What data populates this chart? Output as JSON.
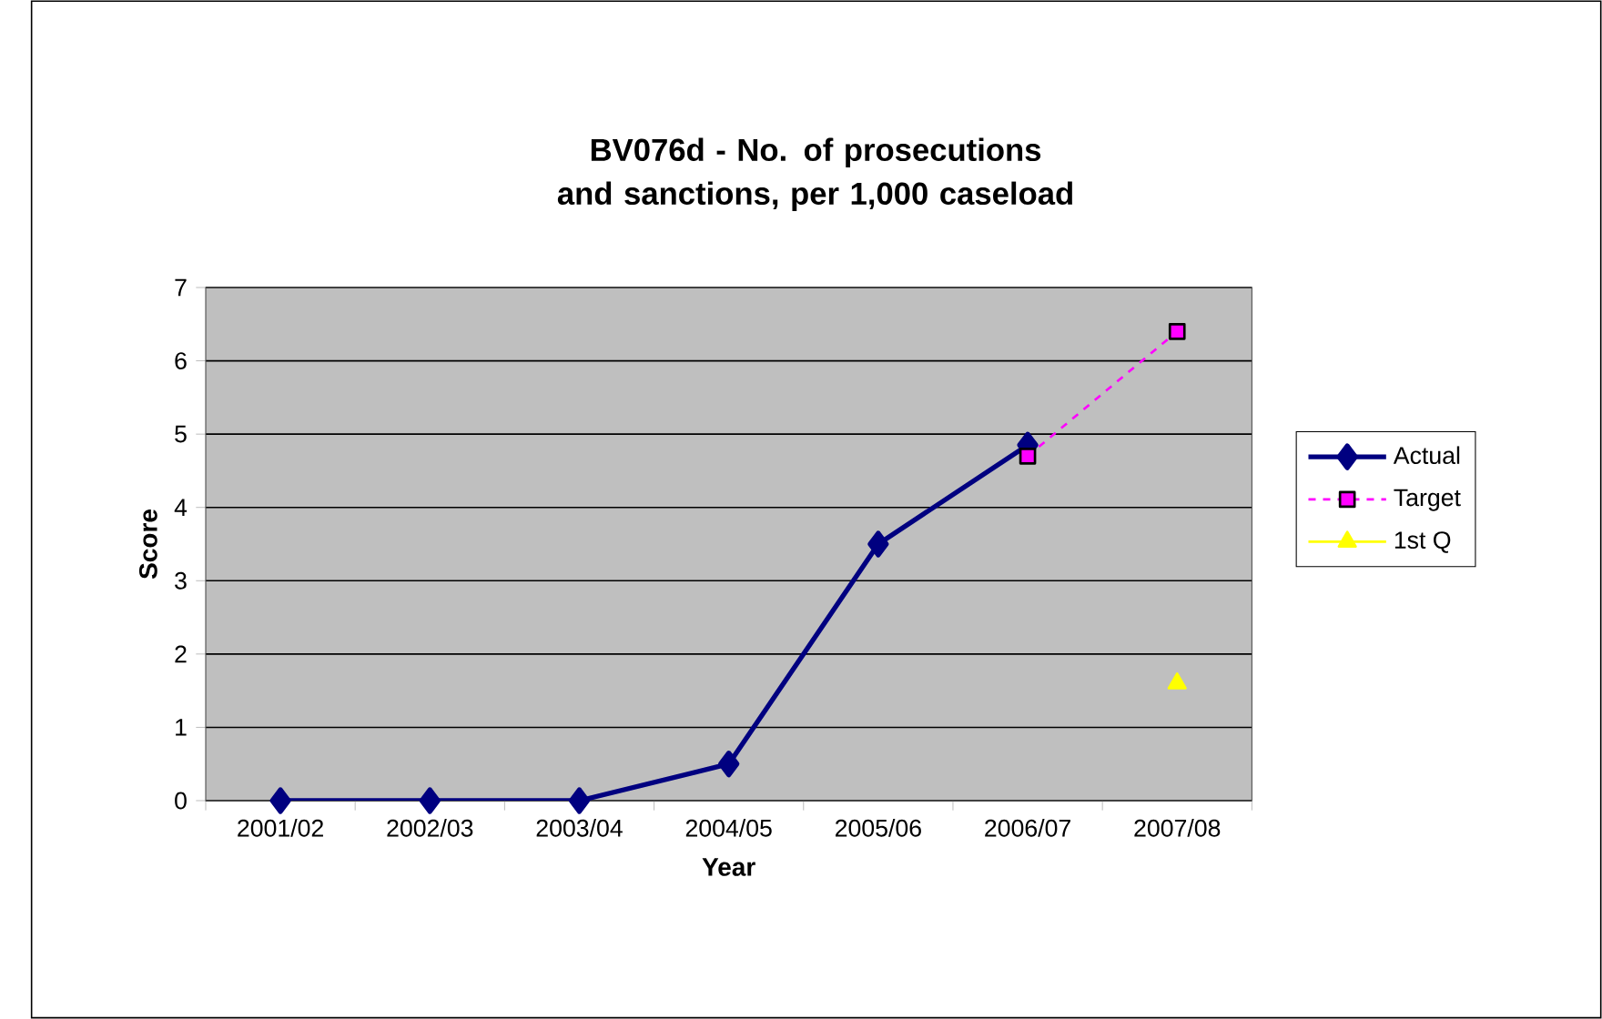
{
  "chart_data": {
    "type": "line",
    "title": "BV076d - No. of prosecutions and sanctions, per 1,000 caseload",
    "xlabel": "Year",
    "ylabel": "Score",
    "categories": [
      "2001/02",
      "2002/03",
      "2003/04",
      "2004/05",
      "2005/06",
      "2006/07",
      "2007/08"
    ],
    "series": [
      {
        "name": "Actual",
        "color": "#000080",
        "marker": "diamond",
        "line_style": "solid",
        "values": [
          0,
          0,
          0,
          0.5,
          3.5,
          4.85,
          null
        ]
      },
      {
        "name": "Target",
        "color": "#ff00ff",
        "marker": "square",
        "line_style": "dashed",
        "values": [
          null,
          null,
          null,
          null,
          null,
          4.7,
          6.4
        ]
      },
      {
        "name": "1st Q",
        "color": "#ffff00",
        "marker": "triangle",
        "line_style": "solid",
        "values": [
          null,
          null,
          null,
          null,
          null,
          null,
          1.6
        ]
      }
    ],
    "ylim": [
      0,
      7
    ],
    "yticks": [
      0,
      1,
      2,
      3,
      4,
      5,
      6,
      7
    ],
    "grid": "y",
    "legend": "right"
  }
}
